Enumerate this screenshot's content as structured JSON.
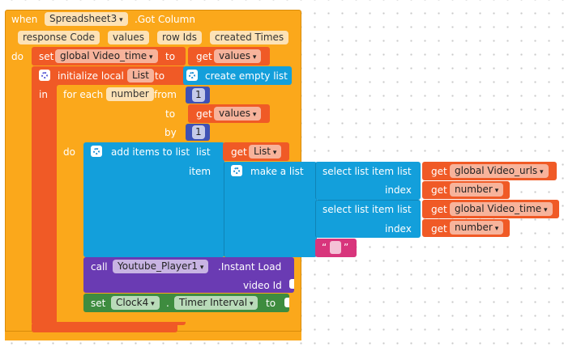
{
  "event": {
    "when": "when",
    "component": "Spreadsheet3",
    "event_name": ".Got Column",
    "params": [
      "response Code",
      "values",
      "row Ids",
      "created Times"
    ],
    "do": "do"
  },
  "set_global": {
    "set": "set",
    "var": "global Video_time",
    "to": "to",
    "get": "get",
    "value": "values"
  },
  "init_local": {
    "label": "initialize local",
    "name": "List",
    "to": "to",
    "in": "in",
    "create": "create empty list"
  },
  "for_each": {
    "label": "for each",
    "var": "number",
    "from": "from",
    "from_value": "1",
    "to": "to",
    "to_get": "get",
    "to_value": "values",
    "by": "by",
    "by_value": "1",
    "do": "do"
  },
  "add_items": {
    "label": "add items to list",
    "list_label": "list",
    "get": "get",
    "list_value": "List",
    "item_label": "item",
    "make_list": "make a list"
  },
  "select1": {
    "label": "select list item",
    "list_label": "list",
    "get": "get",
    "list_value": "global Video_urls",
    "index_label": "index",
    "index_get": "get",
    "index_value": "number"
  },
  "select2": {
    "label": "select list item",
    "list_label": "list",
    "get": "get",
    "list_value": "global Video_time",
    "index_label": "index",
    "index_get": "get",
    "index_value": "number"
  },
  "empty_text": {
    "open": "“",
    "close": "”"
  },
  "call_block": {
    "call": "call",
    "component": "Youtube_Player1",
    "method": ".Instant Load",
    "arg": "video Id"
  },
  "set_clock": {
    "set": "set",
    "component": "Clock4",
    "dot": ".",
    "property": "Timer Interval",
    "to": "to"
  },
  "colors": {
    "event": "#fba81b",
    "variable": "#f05a26",
    "control": "#fba81b",
    "list": "#139fdb",
    "text": "#d8357c",
    "math": "#3f51b5",
    "component_call": "#6a3bb3",
    "component_set": "#3e8c3f",
    "canvas": "#ffffff"
  }
}
